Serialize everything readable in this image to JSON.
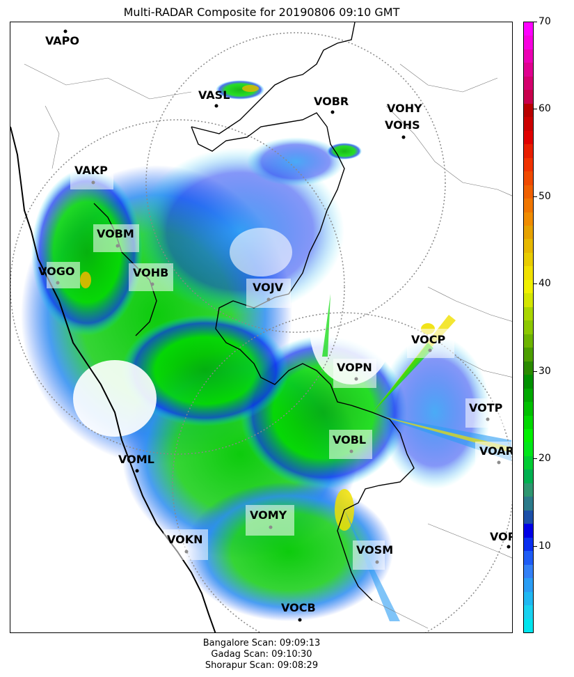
{
  "title": "Multi-RADAR Composite for 20190806 09:10 GMT",
  "stations": [
    {
      "name": "VAPO",
      "label": "VAPO",
      "highlight": false
    },
    {
      "name": "VASL",
      "label": "VASL",
      "highlight": false
    },
    {
      "name": "VOBR",
      "label": "VOBR",
      "highlight": false
    },
    {
      "name": "VOHY",
      "label": "VOHY",
      "highlight": false
    },
    {
      "name": "VOHS",
      "label": "VOHS",
      "highlight": false
    },
    {
      "name": "VAKP",
      "label": "VAKP",
      "highlight": true
    },
    {
      "name": "VOBM",
      "label": "VOBM",
      "highlight": true
    },
    {
      "name": "VOGO",
      "label": "VOGO",
      "highlight": true
    },
    {
      "name": "VOHB",
      "label": "VOHB",
      "highlight": true
    },
    {
      "name": "VOJV",
      "label": "VOJV",
      "highlight": true
    },
    {
      "name": "VOCP",
      "label": "VOCP",
      "highlight": true
    },
    {
      "name": "VOPN",
      "label": "VOPN",
      "highlight": true
    },
    {
      "name": "VOTP",
      "label": "VOTP",
      "highlight": true
    },
    {
      "name": "VOBL",
      "label": "VOBL",
      "highlight": true
    },
    {
      "name": "VOAR",
      "label": "VOAR",
      "highlight": true
    },
    {
      "name": "VOML",
      "label": "VOML",
      "highlight": false
    },
    {
      "name": "VOMY",
      "label": "VOMY",
      "highlight": true
    },
    {
      "name": "VOKN",
      "label": "VOKN",
      "highlight": true
    },
    {
      "name": "VOSM",
      "label": "VOSM",
      "highlight": true
    },
    {
      "name": "VOPC",
      "label": "VOPC",
      "highlight": false
    },
    {
      "name": "VOCB",
      "label": "VOCB",
      "highlight": false
    }
  ],
  "colorbar": {
    "min": 0,
    "max": 70,
    "ticks": [
      "10",
      "20",
      "30",
      "40",
      "50",
      "60",
      "70"
    ],
    "colors": [
      "#00e5ee",
      "#19d2f0",
      "#20b8f2",
      "#2a9df4",
      "#3380f6",
      "#1e5cf5",
      "#0a2ff0",
      "#0000e6",
      "#1c4fa8",
      "#2b7a8a",
      "#2e9670",
      "#00b050",
      "#00cc33",
      "#00e61a",
      "#00f000",
      "#00d800",
      "#00c000",
      "#00a800",
      "#009000",
      "#2a8a00",
      "#4c9e00",
      "#6db400",
      "#8cc800",
      "#aad600",
      "#d4e600",
      "#f0f000",
      "#f0e000",
      "#e8cc00",
      "#e6b800",
      "#e6a200",
      "#f08c00",
      "#f07600",
      "#f06000",
      "#f04a00",
      "#f03200",
      "#e81e00",
      "#e00000",
      "#cc0000",
      "#b80000",
      "#c8004c",
      "#d4006e",
      "#e00090",
      "#ec00b4",
      "#f800e0",
      "#ff00ff"
    ]
  },
  "footer": {
    "line1": "Bangalore Scan: 09:09:13",
    "line2": "Gadag Scan: 09:10:30",
    "line3": "Shorapur Scan: 09:08:29"
  }
}
